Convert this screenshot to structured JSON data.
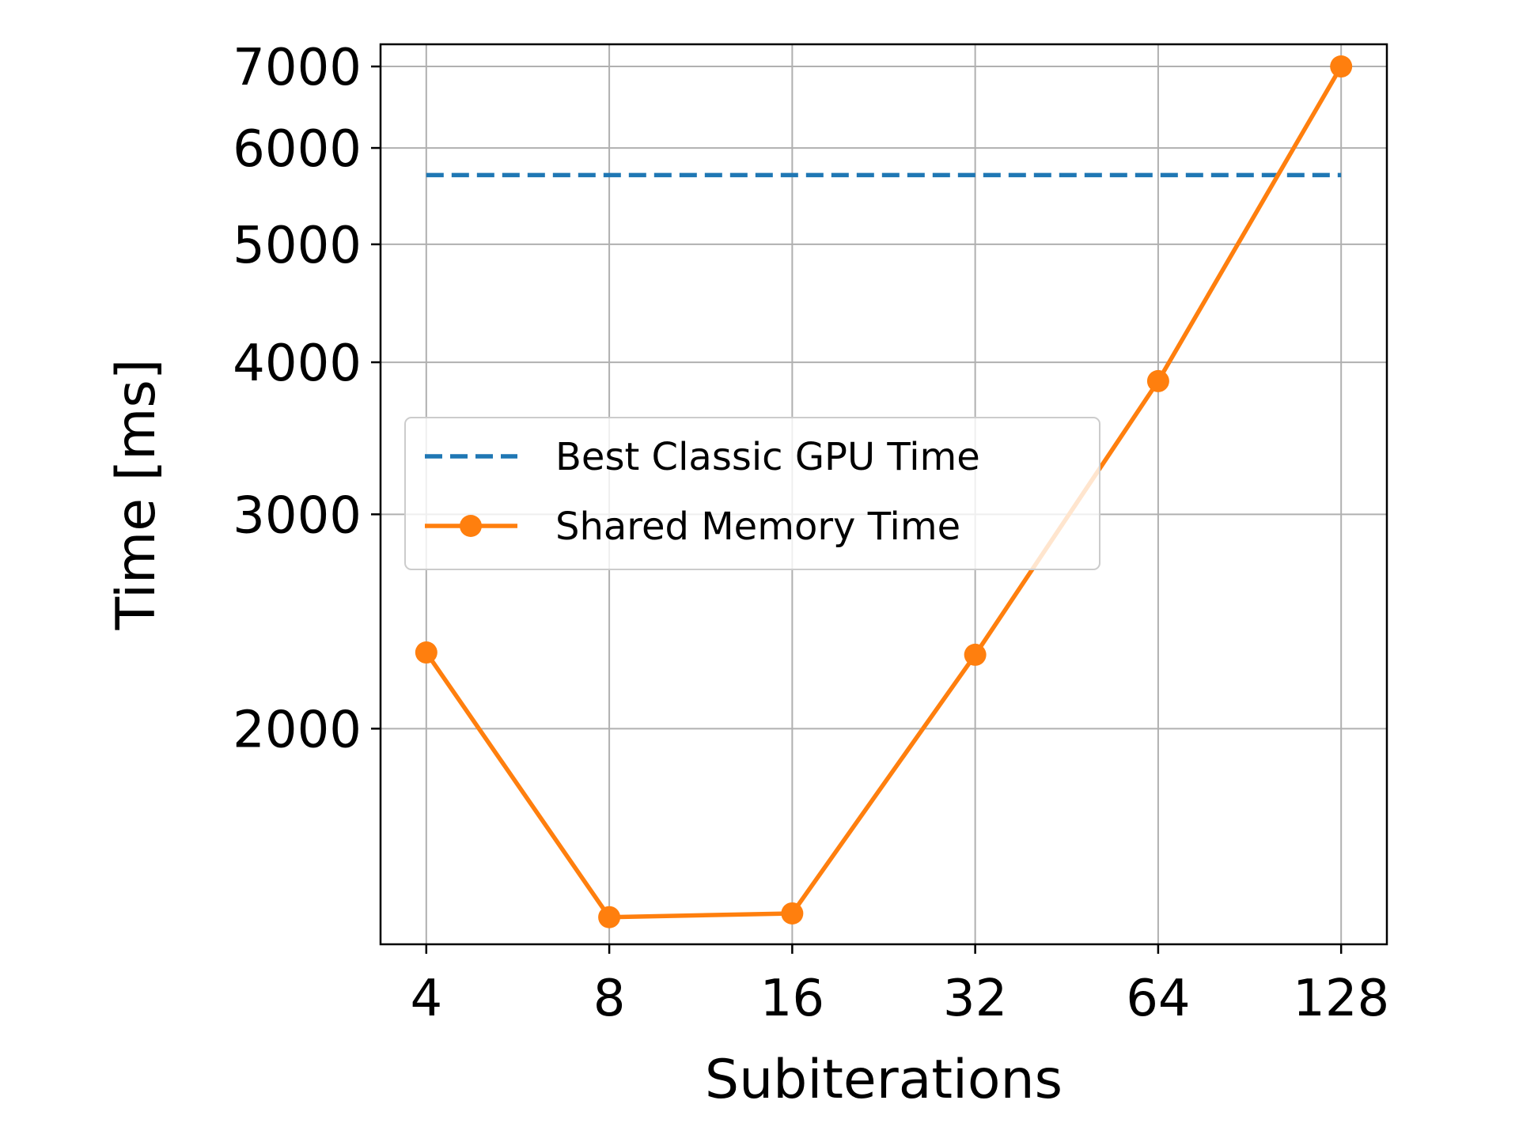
{
  "chart_data": {
    "type": "line",
    "title": "",
    "xlabel": "Subiterations",
    "ylabel": "Time [ms]",
    "xscale": "log2",
    "yscale": "log",
    "x": [
      4,
      8,
      16,
      32,
      64,
      128
    ],
    "x_tick_labels": [
      "4",
      "8",
      "16",
      "32",
      "64",
      "128"
    ],
    "y_ticks": [
      2000,
      3000,
      4000,
      5000,
      6000,
      7000
    ],
    "y_tick_labels": [
      "2000",
      "3000",
      "4000",
      "5000",
      "6000",
      "7000"
    ],
    "ylim": [
      1330,
      7300
    ],
    "grid": true,
    "legend_position": "center-left",
    "series": [
      {
        "name": "Best Classic GPU Time",
        "style": "dashed",
        "marker": "none",
        "color": "#1f77b4",
        "x": [
          4,
          128
        ],
        "values": [
          5700,
          5700
        ]
      },
      {
        "name": "Shared Memory Time",
        "style": "solid",
        "marker": "circle",
        "color": "#ff7f0e",
        "x": [
          4,
          8,
          16,
          32,
          64,
          128
        ],
        "values": [
          2310,
          1400,
          1410,
          2300,
          3860,
          7000
        ]
      }
    ]
  }
}
